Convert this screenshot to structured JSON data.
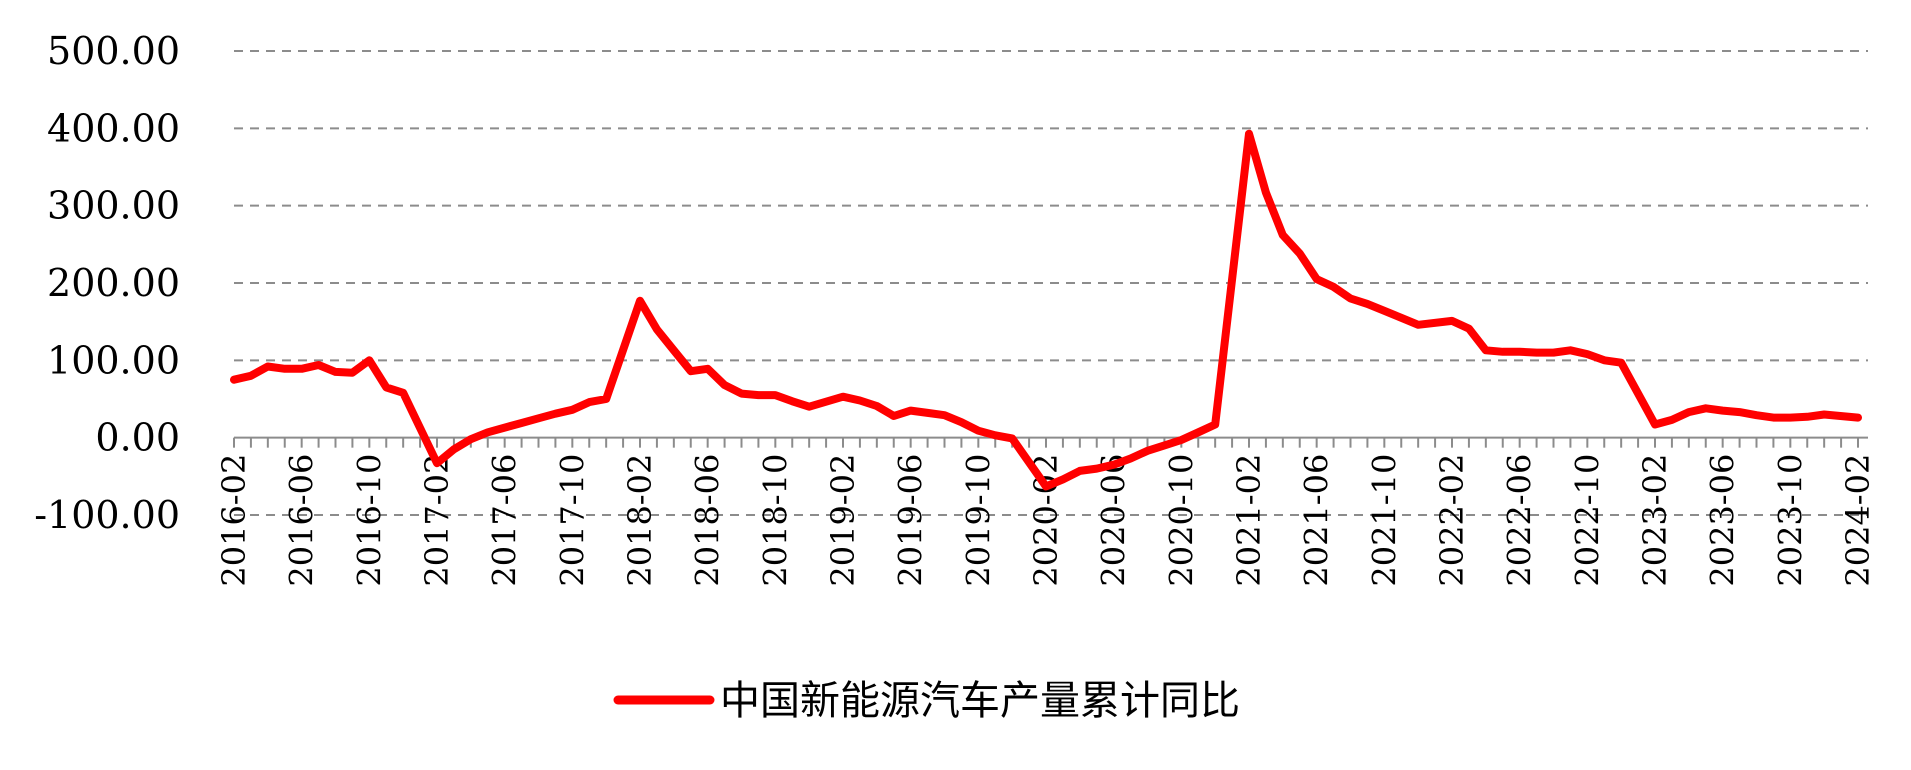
{
  "chart_data": {
    "type": "line",
    "title": "",
    "xlabel": "",
    "ylabel": "",
    "ylim": [
      -100,
      500
    ],
    "y_ticks": [
      "500.00",
      "400.00",
      "300.00",
      "200.00",
      "100.00",
      "0.00",
      "-100.00"
    ],
    "y_tick_values": [
      500,
      400,
      300,
      200,
      100,
      0,
      -100
    ],
    "x_tick_labels": [
      "2016-02",
      "2016-06",
      "2016-10",
      "2017-02",
      "2017-06",
      "2017-10",
      "2018-02",
      "2018-06",
      "2018-10",
      "2019-02",
      "2019-06",
      "2019-10",
      "2020-02",
      "2020-06",
      "2020-10",
      "2021-02",
      "2021-06",
      "2021-10",
      "2022-02",
      "2022-06",
      "2022-10",
      "2023-02",
      "2023-06",
      "2023-10",
      "2024-02"
    ],
    "grid": "horizontal-dashed",
    "legend_position": "bottom-center",
    "colors": {
      "series": "#ff0000",
      "grid": "#8c8c8c",
      "axis": "#8c8c8c"
    },
    "series": [
      {
        "name": "中国新能源汽车产量累计同比",
        "points": [
          [
            "2016-02",
            75
          ],
          [
            "2016-03",
            80
          ],
          [
            "2016-04",
            92
          ],
          [
            "2016-05",
            89
          ],
          [
            "2016-06",
            89
          ],
          [
            "2016-07",
            94
          ],
          [
            "2016-08",
            85
          ],
          [
            "2016-09",
            84
          ],
          [
            "2016-10",
            100
          ],
          [
            "2016-11",
            65
          ],
          [
            "2016-12",
            58
          ],
          [
            "2017-02",
            -33
          ],
          [
            "2017-03",
            -15
          ],
          [
            "2017-04",
            -2
          ],
          [
            "2017-05",
            7
          ],
          [
            "2017-06",
            13
          ],
          [
            "2017-07",
            19
          ],
          [
            "2017-08",
            25
          ],
          [
            "2017-09",
            31
          ],
          [
            "2017-10",
            36
          ],
          [
            "2017-11",
            46
          ],
          [
            "2017-12",
            50
          ],
          [
            "2018-02",
            177
          ],
          [
            "2018-03",
            140
          ],
          [
            "2018-04",
            113
          ],
          [
            "2018-05",
            86
          ],
          [
            "2018-06",
            89
          ],
          [
            "2018-07",
            68
          ],
          [
            "2018-08",
            57
          ],
          [
            "2018-09",
            55
          ],
          [
            "2018-10",
            55
          ],
          [
            "2018-11",
            47
          ],
          [
            "2018-12",
            40
          ],
          [
            "2019-02",
            53
          ],
          [
            "2019-03",
            48
          ],
          [
            "2019-04",
            41
          ],
          [
            "2019-05",
            28
          ],
          [
            "2019-06",
            35
          ],
          [
            "2019-07",
            32
          ],
          [
            "2019-08",
            29
          ],
          [
            "2019-09",
            20
          ],
          [
            "2019-10",
            9
          ],
          [
            "2019-11",
            3
          ],
          [
            "2019-12",
            -1
          ],
          [
            "2020-02",
            -63
          ],
          [
            "2020-03",
            -54
          ],
          [
            "2020-04",
            -43
          ],
          [
            "2020-05",
            -40
          ],
          [
            "2020-06",
            -35
          ],
          [
            "2020-07",
            -27
          ],
          [
            "2020-08",
            -17
          ],
          [
            "2020-09",
            -10
          ],
          [
            "2020-10",
            -3
          ],
          [
            "2020-11",
            7
          ],
          [
            "2020-12",
            17
          ],
          [
            "2021-02",
            393
          ],
          [
            "2021-03",
            317
          ],
          [
            "2021-04",
            262
          ],
          [
            "2021-05",
            238
          ],
          [
            "2021-06",
            205
          ],
          [
            "2021-07",
            195
          ],
          [
            "2021-08",
            180
          ],
          [
            "2021-09",
            173
          ],
          [
            "2021-10",
            164
          ],
          [
            "2021-11",
            155
          ],
          [
            "2021-12",
            146
          ],
          [
            "2022-02",
            151
          ],
          [
            "2022-03",
            141
          ],
          [
            "2022-04",
            113
          ],
          [
            "2022-05",
            111
          ],
          [
            "2022-06",
            111
          ],
          [
            "2022-07",
            110
          ],
          [
            "2022-08",
            110
          ],
          [
            "2022-09",
            113
          ],
          [
            "2022-10",
            108
          ],
          [
            "2022-11",
            100
          ],
          [
            "2022-12",
            97
          ],
          [
            "2023-02",
            17
          ],
          [
            "2023-03",
            23
          ],
          [
            "2023-04",
            33
          ],
          [
            "2023-05",
            38
          ],
          [
            "2023-06",
            35
          ],
          [
            "2023-07",
            33
          ],
          [
            "2023-08",
            29
          ],
          [
            "2023-09",
            26
          ],
          [
            "2023-10",
            26
          ],
          [
            "2023-11",
            27
          ],
          [
            "2023-12",
            30
          ],
          [
            "2024-02",
            26
          ]
        ]
      }
    ]
  }
}
